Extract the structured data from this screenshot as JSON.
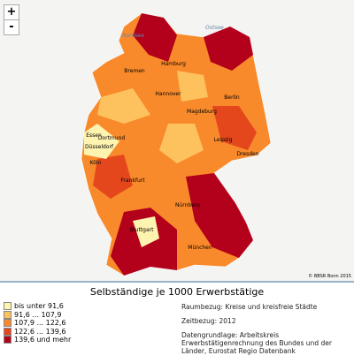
{
  "zoom": {
    "in": "+",
    "out": "-"
  },
  "map": {
    "seas": [
      "Nordsee",
      "Ostsee"
    ],
    "cities": [
      "Hamburg",
      "Bremen",
      "Hannover",
      "Berlin",
      "Magdeburg",
      "Leipzig",
      "Dresden",
      "Essen",
      "Dortmund",
      "Düsseldorf",
      "Köln",
      "Frankfurt",
      "Nürnberg",
      "Stuttgart",
      "München"
    ],
    "copyright": "© BBSR Bonn 2015"
  },
  "title": "Selbständige je 1000 Erwerbstätige",
  "legend": [
    {
      "label": "bis unter 91,6",
      "color": "#fff3b0"
    },
    {
      "label": "91,6 ... 107,9",
      "color": "#fdc25e"
    },
    {
      "label": "107,9 ... 122,6",
      "color": "#f98a2c"
    },
    {
      "label": "122,6 ... 139,6",
      "color": "#e4471c"
    },
    {
      "label": "139,6 und mehr",
      "color": "#b3001b"
    }
  ],
  "info": {
    "raumbezug": "Raumbezug: Kreise und kreisfreie Städte",
    "zeitbezug": "Zeitbezug: 2012",
    "datengrundlage": "Datengrundlage: Arbeitskreis Erwerbstätigenrechnung des Bundes und der Länder, Eurostat Regio Datenbank"
  }
}
